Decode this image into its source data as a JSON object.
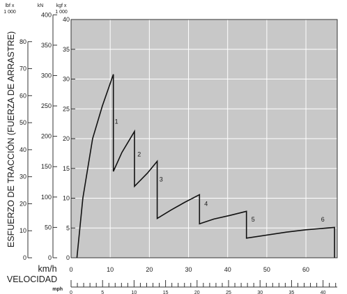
{
  "chart_data": {
    "type": "line",
    "title": "",
    "ylabel": "ESFUERZO DE TRACCIÓN (FUERZA DE ARRASTRE)",
    "xlabel": "VELOCIDAD",
    "x_unit_top": "km/h",
    "x_unit_bottom": "mph",
    "xlim": [
      0,
      68
    ],
    "ylim": [
      0,
      40
    ],
    "grid": true,
    "background": "#c8c8c8",
    "line_color": "#111111",
    "y_axes": [
      {
        "unit_line1": "lbf x",
        "unit_line2": "1 000",
        "ticks": [
          0,
          10,
          20,
          30,
          40,
          50,
          60,
          70,
          80
        ],
        "factor_kn": 4.448
      },
      {
        "unit_line1": "kN",
        "unit_line2": "",
        "ticks": [
          0,
          50,
          100,
          150,
          200,
          250,
          300,
          350,
          400
        ],
        "factor_kn": 1
      },
      {
        "unit_line1": "kgf x",
        "unit_line2": "1 000",
        "ticks": [
          0,
          5,
          10,
          15,
          20,
          25,
          30,
          35,
          40
        ],
        "factor_kn": 9.80665
      }
    ],
    "x_ticks_kmh": [
      0,
      10,
      20,
      30,
      40,
      50,
      60
    ],
    "x_ticks_mph": [
      0,
      5,
      10,
      15,
      20,
      25,
      30,
      35,
      40
    ],
    "series": [
      {
        "points": [
          [
            1.5,
            0
          ],
          [
            3,
            10
          ],
          [
            5.5,
            20
          ],
          [
            8,
            25.5
          ],
          [
            10.8,
            30.8
          ],
          [
            10.8,
            14.5
          ],
          [
            13,
            17.7
          ],
          [
            16.2,
            21.2
          ],
          [
            16.2,
            12
          ],
          [
            19.5,
            14.2
          ],
          [
            22,
            16.2
          ],
          [
            22,
            6.6
          ],
          [
            25.5,
            8
          ],
          [
            29,
            9.3
          ],
          [
            32.8,
            10.6
          ],
          [
            32.8,
            5.7
          ],
          [
            36.5,
            6.5
          ],
          [
            40.5,
            7.1
          ],
          [
            44.8,
            7.8
          ],
          [
            44.8,
            3.3
          ],
          [
            55,
            4.3
          ],
          [
            60,
            4.7
          ],
          [
            67.3,
            5.1
          ],
          [
            67.3,
            0
          ]
        ]
      }
    ],
    "gear_labels": [
      {
        "label": "1",
        "x": 11.6,
        "y": 22.5
      },
      {
        "label": "2",
        "x": 17.4,
        "y": 17
      },
      {
        "label": "3",
        "x": 23,
        "y": 12.8
      },
      {
        "label": "4",
        "x": 34.5,
        "y": 8.7
      },
      {
        "label": "5",
        "x": 46.5,
        "y": 6.1
      },
      {
        "label": "6",
        "x": 64.3,
        "y": 6.1
      }
    ]
  }
}
